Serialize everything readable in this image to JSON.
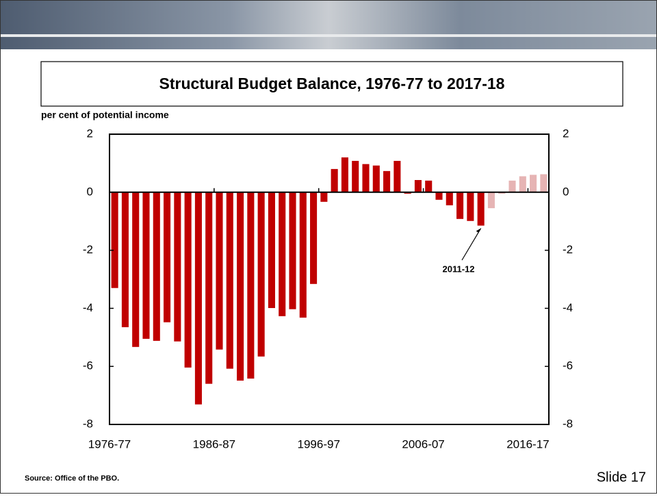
{
  "chart_data": {
    "type": "bar",
    "title": "Structural Budget Balance, 1976-77 to 2017-18",
    "y_axis_label": "per cent of potential income",
    "categories": [
      "1976-77",
      null,
      null,
      null,
      null,
      null,
      null,
      null,
      null,
      null,
      "1986-87",
      null,
      null,
      null,
      null,
      null,
      null,
      null,
      null,
      null,
      "1996-97",
      null,
      null,
      null,
      null,
      null,
      null,
      null,
      null,
      null,
      "2006-07",
      null,
      null,
      null,
      null,
      null,
      null,
      null,
      null,
      null,
      "2016-17",
      null
    ],
    "values": [
      -3.3,
      -4.65,
      -5.33,
      -5.05,
      -5.12,
      -4.48,
      -5.14,
      -6.04,
      -7.31,
      -6.6,
      -5.42,
      -6.08,
      -6.49,
      -6.42,
      -5.66,
      -3.99,
      -4.27,
      -4.03,
      -4.32,
      -3.16,
      -0.33,
      0.8,
      1.2,
      1.08,
      0.97,
      0.92,
      0.73,
      1.08,
      -0.05,
      0.42,
      0.4,
      -0.26,
      -0.45,
      -0.92,
      -0.99,
      -1.15,
      -0.55,
      -0.05,
      0.4,
      0.55,
      0.6,
      0.62
    ],
    "colors": [
      "#c00000",
      "#c00000",
      "#c00000",
      "#c00000",
      "#c00000",
      "#c00000",
      "#c00000",
      "#c00000",
      "#c00000",
      "#c00000",
      "#c00000",
      "#c00000",
      "#c00000",
      "#c00000",
      "#c00000",
      "#c00000",
      "#c00000",
      "#c00000",
      "#c00000",
      "#c00000",
      "#c00000",
      "#c00000",
      "#c00000",
      "#c00000",
      "#c00000",
      "#c00000",
      "#c00000",
      "#c00000",
      "#c00000",
      "#c00000",
      "#c00000",
      "#c00000",
      "#c00000",
      "#c00000",
      "#c00000",
      "#c00000",
      "#e6b4b4",
      "#e6b4b4",
      "#e6b4b4",
      "#e6b4b4",
      "#e6b4b4",
      "#e6b4b4"
    ],
    "annotation": "2011-12",
    "ylim": [
      -8,
      2
    ],
    "yticks": [
      -8,
      -6,
      -4,
      -2,
      0,
      2
    ],
    "y2lim": [
      -8,
      2
    ],
    "y2ticks": [
      -8,
      -6,
      -4,
      -2,
      0,
      2
    ]
  },
  "source": "Source:  Office of the PBO.",
  "slide": "Slide 17"
}
